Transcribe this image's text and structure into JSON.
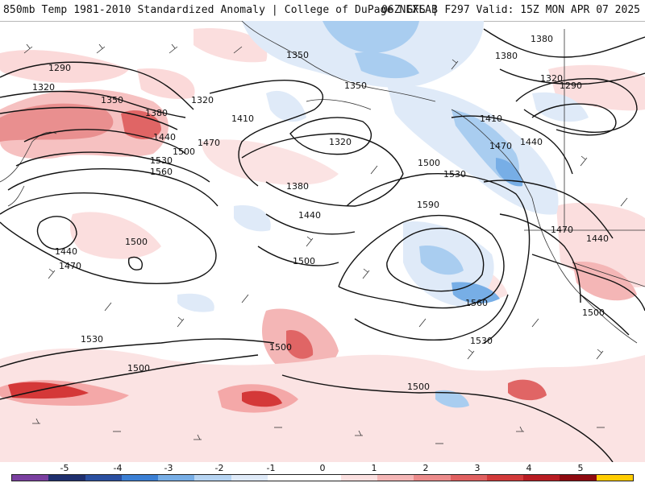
{
  "header": {
    "title_left": "850mb Temp 1981-2010 Standardized Anomaly | College of DuPage NEXLAB",
    "title_right": "06Z GFS | F297 Valid: 15Z MON APR 07 2025"
  },
  "colorbar": {
    "ticks": [
      "-5",
      "-4",
      "-3",
      "-2",
      "-1",
      "0",
      "1",
      "2",
      "3",
      "4",
      "5"
    ],
    "colors": [
      "#7a3fa0",
      "#1f2f6e",
      "#2a4fa0",
      "#3b7fd4",
      "#77aee6",
      "#b6d4f2",
      "#dfeaf8",
      "#ffffff",
      "#ffffff",
      "#fbe0e0",
      "#f4b6b6",
      "#ec8b8b",
      "#e06060",
      "#d23a3a",
      "#b81c22",
      "#8e0a10",
      "#ffcc00"
    ]
  },
  "contours": {
    "labels": [
      "1290",
      "1320",
      "1350",
      "1380",
      "1410",
      "1440",
      "1470",
      "1500",
      "1530",
      "1560",
      "1590"
    ]
  },
  "map_labels": [
    {
      "text": "1290"
    },
    {
      "text": "1320"
    },
    {
      "text": "1350"
    },
    {
      "text": "1380"
    },
    {
      "text": "1320"
    },
    {
      "text": "1440"
    },
    {
      "text": "1470"
    },
    {
      "text": "1500"
    },
    {
      "text": "1530"
    },
    {
      "text": "1560"
    },
    {
      "text": "1410"
    },
    {
      "text": "1350"
    },
    {
      "text": "1350"
    },
    {
      "text": "1320"
    },
    {
      "text": "1380"
    },
    {
      "text": "1440"
    },
    {
      "text": "1500"
    },
    {
      "text": "1530"
    },
    {
      "text": "1590"
    },
    {
      "text": "1560"
    },
    {
      "text": "1530"
    },
    {
      "text": "1500"
    },
    {
      "text": "1500"
    },
    {
      "text": "1530"
    },
    {
      "text": "1500"
    },
    {
      "text": "1500"
    },
    {
      "text": "1440"
    },
    {
      "text": "1470"
    },
    {
      "text": "1500"
    },
    {
      "text": "1380"
    },
    {
      "text": "1380"
    },
    {
      "text": "1320"
    },
    {
      "text": "1290"
    },
    {
      "text": "1410"
    },
    {
      "text": "1470"
    },
    {
      "text": "1440"
    },
    {
      "text": "1470"
    },
    {
      "text": "1440"
    },
    {
      "text": "1500"
    }
  ]
}
